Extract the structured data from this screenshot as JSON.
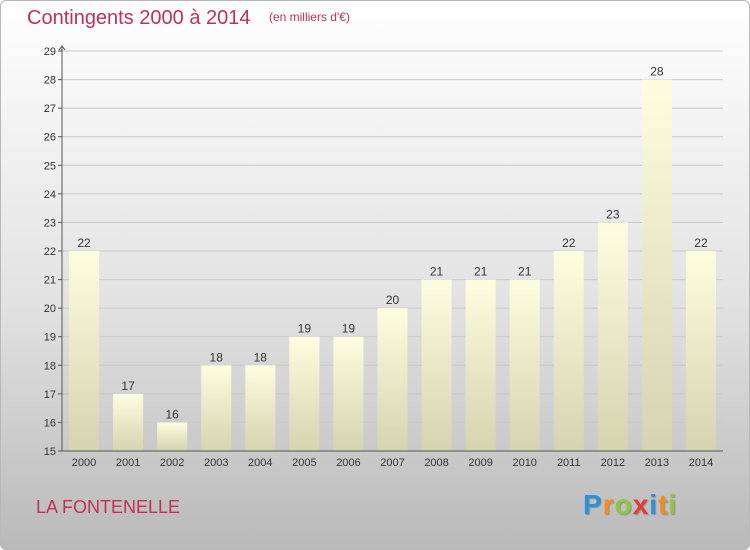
{
  "header": {
    "title": "Contingents 2000 à 2014",
    "subtitle": "(en milliers d'€)"
  },
  "footer": {
    "place": "LA FONTENELLE",
    "brand": "Proxiti",
    "brand_letters": [
      {
        "ch": "P",
        "color": "#2f8fd8"
      },
      {
        "ch": "r",
        "color": "#f28c1e"
      },
      {
        "ch": "o",
        "color": "#8cc63f"
      },
      {
        "ch": "x",
        "color": "#e23b3b"
      },
      {
        "ch": "i",
        "color": "#2f8fd8"
      },
      {
        "ch": "t",
        "color": "#f28c1e"
      },
      {
        "ch": "i",
        "color": "#8cc63f"
      }
    ]
  },
  "colors": {
    "accent": "#c0305a",
    "bar_top": "#fdfde0",
    "bar_bottom": "#d4d4b0",
    "grid": "#c8c8c8",
    "axis": "#555555",
    "text": "#333333"
  },
  "chart_data": {
    "type": "bar",
    "title": "Contingents 2000 à 2014",
    "subtitle": "(en milliers d'€)",
    "categories": [
      "2000",
      "2001",
      "2002",
      "2003",
      "2004",
      "2005",
      "2006",
      "2007",
      "2008",
      "2009",
      "2010",
      "2011",
      "2012",
      "2013",
      "2014"
    ],
    "values": [
      22,
      17,
      16,
      18,
      18,
      19,
      19,
      20,
      21,
      21,
      21,
      22,
      23,
      28,
      22
    ],
    "ylim": [
      15,
      29
    ],
    "yticks": [
      15,
      16,
      17,
      18,
      19,
      20,
      21,
      22,
      23,
      24,
      25,
      26,
      27,
      28,
      29
    ],
    "grid": true,
    "data_labels": true,
    "xlabel": "",
    "ylabel": ""
  }
}
